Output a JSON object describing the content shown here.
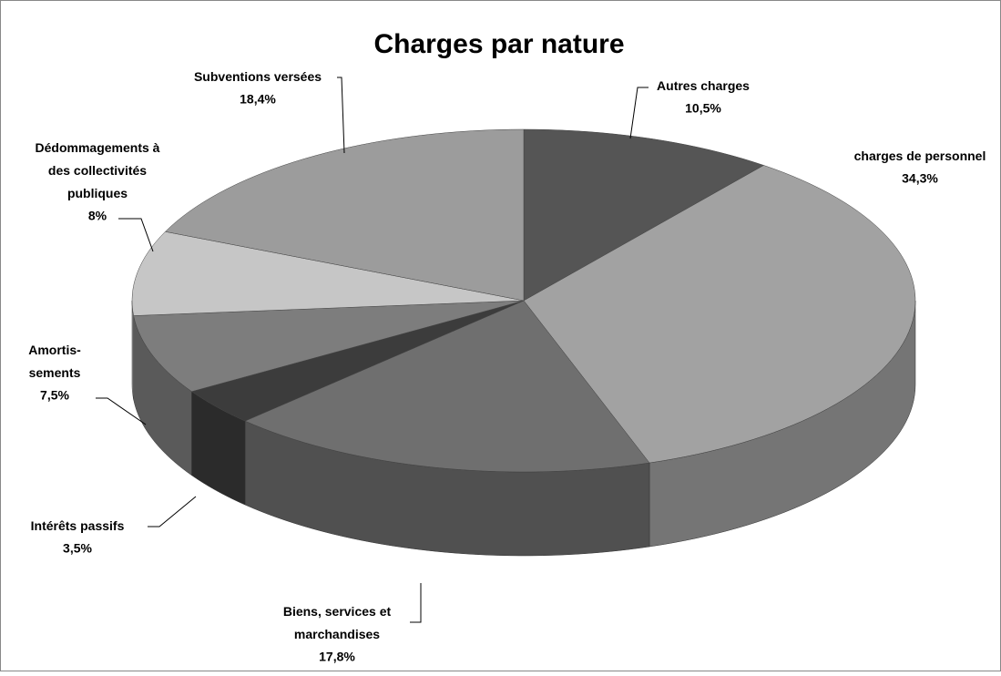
{
  "chart_data": {
    "type": "pie",
    "title": "Charges par nature",
    "categories": [
      "Autres charges",
      "charges de personnel",
      "Biens, services et\nmarchandises",
      "Intérêts passifs",
      "Amortis-\nsements",
      "Dédommagements  à\ndes collectivités\npubliques",
      "Subventions versées"
    ],
    "values": [
      10.5,
      34.3,
      17.8,
      3.5,
      7.5,
      8,
      18.4
    ],
    "value_labels": [
      "10,5%",
      "34,3%",
      "17,8%",
      "3,5%",
      "7,5%",
      "8%",
      "18,4%"
    ],
    "colors": [
      "#555555",
      "#a2a2a2",
      "#6f6f6f",
      "#3c3c3c",
      "#7d7d7d",
      "#c6c6c6",
      "#9c9c9c"
    ]
  }
}
